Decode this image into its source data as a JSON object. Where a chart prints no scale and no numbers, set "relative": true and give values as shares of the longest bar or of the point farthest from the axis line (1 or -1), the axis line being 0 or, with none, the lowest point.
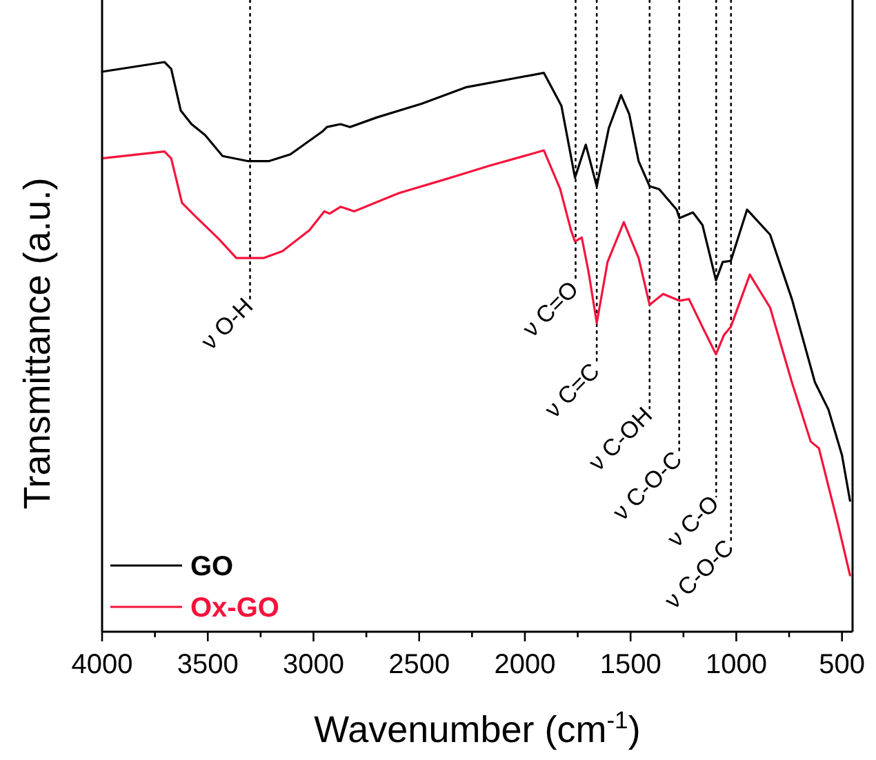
{
  "chart_data": {
    "type": "line",
    "relative": true,
    "xlabel": "Wavenumber (cm$^{-1}$)",
    "ylabel": "Transmittance (a.u.)",
    "xlim": [
      4000,
      450
    ],
    "xticks": [
      4000,
      {
        "value": 3750,
        "label": null
      },
      3500,
      {
        "value": 3250,
        "label": null
      },
      3000,
      {
        "value": 2750,
        "label": null
      },
      2500,
      {
        "value": 2250,
        "label": null
      },
      2000,
      {
        "value": 1750,
        "label": null
      },
      1500,
      {
        "value": 1250,
        "label": null
      },
      1000,
      {
        "value": 750,
        "label": null
      },
      500
    ],
    "tick_labels": "x",
    "legend": "bottom left",
    "grid": false,
    "marker": "none",
    "line_style": "solid",
    "series": [
      {
        "name": "GO",
        "color": "#000000",
        "x": [
          4000,
          3705,
          3673,
          3628,
          3577,
          3513,
          3430,
          3308,
          3212,
          3109,
          2955,
          2936,
          2872,
          2827,
          2699,
          2487,
          2276,
          2058,
          1910,
          1827,
          1795,
          1763,
          1712,
          1660,
          1603,
          1545,
          1506,
          1462,
          1410,
          1365,
          1282,
          1269,
          1205,
          1160,
          1096,
          1064,
          1026,
          949,
          840,
          737,
          628,
          564,
          500,
          462
        ],
        "values": [
          0.983,
          1.0,
          0.988,
          0.915,
          0.891,
          0.872,
          0.835,
          0.826,
          0.826,
          0.838,
          0.879,
          0.886,
          0.891,
          0.886,
          0.903,
          0.927,
          0.956,
          0.971,
          0.981,
          0.923,
          0.86,
          0.797,
          0.855,
          0.782,
          0.884,
          0.942,
          0.908,
          0.826,
          0.782,
          0.777,
          0.741,
          0.726,
          0.736,
          0.714,
          0.617,
          0.649,
          0.651,
          0.741,
          0.697,
          0.584,
          0.438,
          0.39,
          0.31,
          0.23
        ]
      },
      {
        "name": "Ox-GO",
        "color": "#f5133c",
        "x": [
          4000,
          3705,
          3673,
          3622,
          3558,
          3449,
          3365,
          3237,
          3147,
          3019,
          2949,
          2923,
          2872,
          2808,
          2596,
          2378,
          2167,
          1910,
          1833,
          1782,
          1763,
          1731,
          1699,
          1660,
          1609,
          1532,
          1462,
          1410,
          1346,
          1269,
          1224,
          1160,
          1096,
          1058,
          1026,
          936,
          840,
          737,
          648,
          609,
          519,
          462
        ],
        "values": [
          0.831,
          0.843,
          0.831,
          0.753,
          0.729,
          0.69,
          0.656,
          0.656,
          0.668,
          0.705,
          0.738,
          0.734,
          0.746,
          0.738,
          0.77,
          0.794,
          0.818,
          0.845,
          0.777,
          0.705,
          0.685,
          0.692,
          0.632,
          0.542,
          0.649,
          0.719,
          0.656,
          0.574,
          0.593,
          0.581,
          0.584,
          0.535,
          0.487,
          0.521,
          0.535,
          0.627,
          0.569,
          0.438,
          0.334,
          0.322,
          0.189,
          0.099
        ]
      }
    ],
    "ref_lines": [
      {
        "axis": "x",
        "value": 3300,
        "label": "ν O-H",
        "line_style": "dotted"
      },
      {
        "axis": "x",
        "value": 1760,
        "label": "ν C=O",
        "line_style": "dotted"
      },
      {
        "axis": "x",
        "value": 1660,
        "label": "ν C=C",
        "line_style": "dotted"
      },
      {
        "axis": "x",
        "value": 1410,
        "label": "ν C-OH",
        "line_style": "dotted"
      },
      {
        "axis": "x",
        "value": 1270,
        "label": "ν C-O-C",
        "line_style": "dotted"
      },
      {
        "axis": "x",
        "value": 1095,
        "label": "ν C-O",
        "line_style": "dotted"
      },
      {
        "axis": "x",
        "value": 1025,
        "label": "ν C-O-C",
        "line_style": "dotted"
      }
    ]
  }
}
